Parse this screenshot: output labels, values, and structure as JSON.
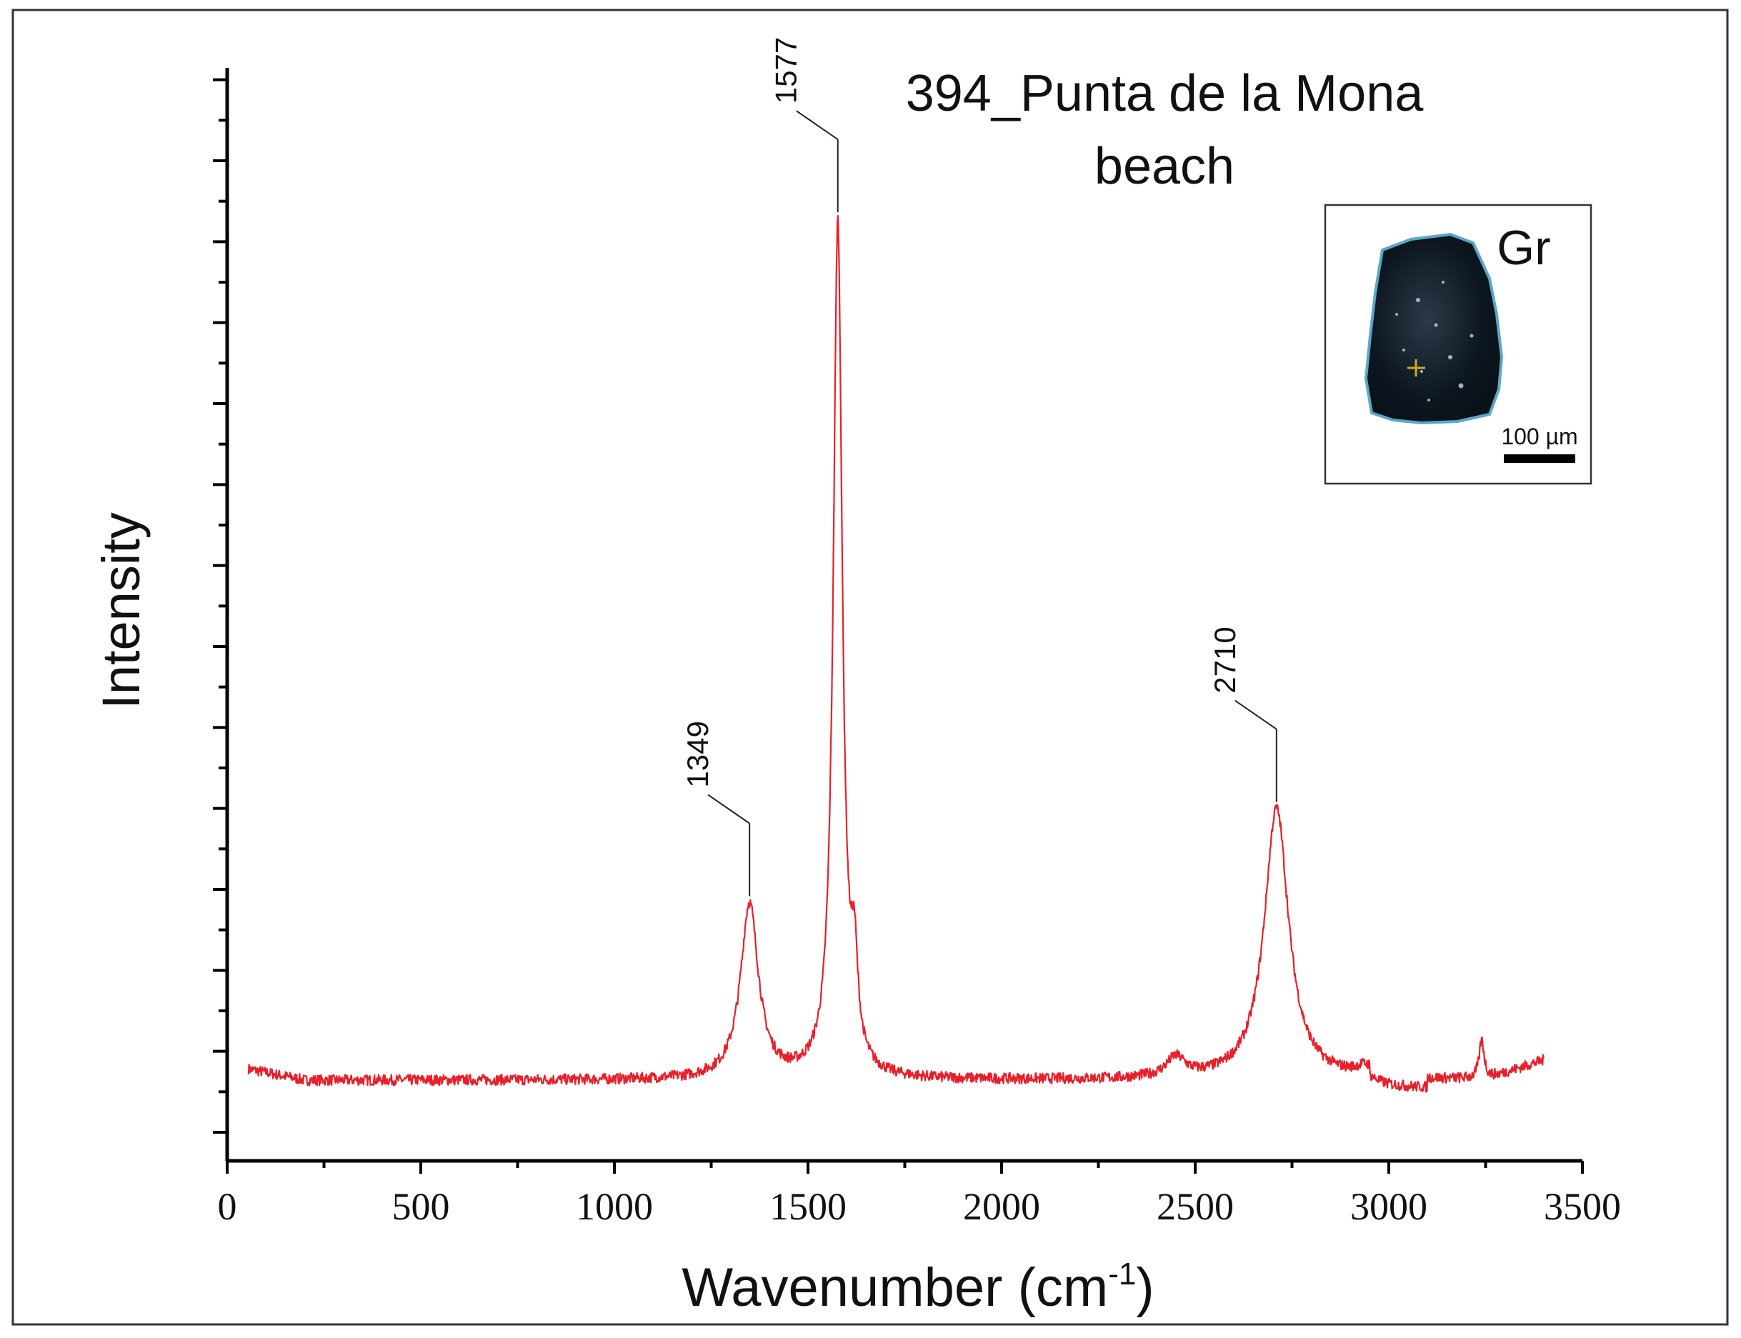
{
  "chart_data": {
    "type": "line",
    "title_line1": "394_Punta de la Mona",
    "title_line2": "beach",
    "xlabel": "Wavenumber (cm",
    "xlabel_sup": "-1",
    "xlabel_close": ")",
    "ylabel": "Intensity",
    "xlim": [
      0,
      3500
    ],
    "ylim": [
      0,
      1.0
    ],
    "x_ticks": [
      0,
      500,
      1000,
      1500,
      2000,
      2500,
      3000,
      3500
    ],
    "x_tick_labels": [
      "0",
      "500",
      "1000",
      "1500",
      "2000",
      "2500",
      "3000",
      "3500"
    ],
    "y_tick_labels_shown": false,
    "grid": false,
    "line_color": "#e8202a",
    "series": [
      {
        "x_range": [
          55,
          3400
        ],
        "baseline": 0.035,
        "peaks": [
          {
            "center": 1349,
            "height": 0.18,
            "width": 28
          },
          {
            "center": 1577,
            "height": 0.88,
            "width": 14
          },
          {
            "center": 1620,
            "height": 0.09,
            "width": 10
          },
          {
            "center": 2450,
            "height": 0.02,
            "width": 30
          },
          {
            "center": 2710,
            "height": 0.28,
            "width": 38
          },
          {
            "center": 2940,
            "height": 0.01,
            "width": 30
          },
          {
            "center": 3240,
            "height": 0.04,
            "width": 8
          }
        ]
      }
    ],
    "annotations": [
      {
        "label": "1349",
        "x": 1349
      },
      {
        "label": "1577",
        "x": 1577
      },
      {
        "label": "2710",
        "x": 2710
      }
    ],
    "inset": {
      "label": "Gr",
      "scale_label": "100 µm"
    }
  }
}
